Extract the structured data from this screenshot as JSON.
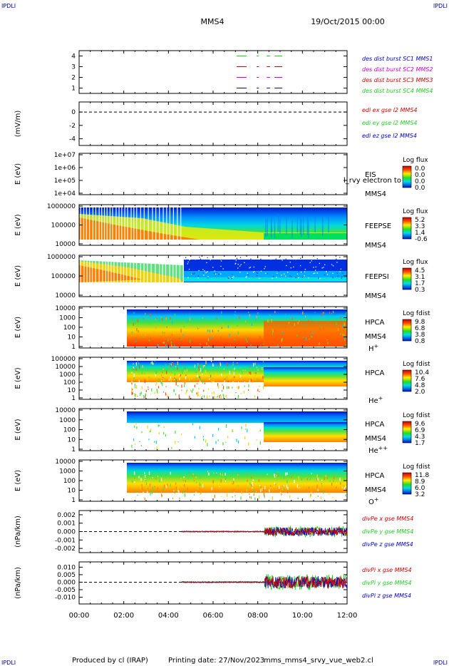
{
  "header": {
    "corner_left": "IPDLI",
    "corner_right": "IPDLI",
    "spacecraft": "MMS4",
    "date_time": "19/Oct/2015 00:00"
  },
  "footer": {
    "corner_left": "IPDLI",
    "corner_right": "IPDLI",
    "produced_by": "Produced by cl (IRAP)",
    "printing_date": "Printing date: 27/Nov/2023",
    "script": "mms_mms4_srvy_vue_web2.cl"
  },
  "time_axis": {
    "ticks": [
      "00:00",
      "02:00",
      "04:00",
      "06:00",
      "08:00",
      "10:00",
      "12:00"
    ],
    "range_hours": [
      0,
      12
    ]
  },
  "colors": {
    "red": "#cc0000",
    "green": "#22cc22",
    "blue": "#0000cc",
    "magenta": "#cc00cc"
  },
  "chart_data": [
    {
      "type": "line",
      "panel": "burst",
      "ylim": [
        0.5,
        4.5
      ],
      "yticks": [
        "4",
        "3",
        "2",
        "1"
      ],
      "ytick_values": [
        4,
        3,
        2,
        1
      ],
      "series": [
        {
          "name": "des dist burst SC1 MMS1",
          "color": "#0000cc",
          "level": 1
        },
        {
          "name": "des dist burst SC2 MMS2",
          "color": "#cc00cc",
          "level": 2
        },
        {
          "name": "des dist burst SC3 MMS3",
          "color": "#cc0000",
          "level": 3
        },
        {
          "name": "des dist burst SC4 MMS4",
          "color": "#22cc22",
          "level": 4
        }
      ],
      "segments_hours": [
        [
          7.05,
          7.5
        ],
        [
          7.95,
          8.05
        ],
        [
          8.4,
          8.55
        ],
        [
          8.75,
          9.1
        ]
      ]
    },
    {
      "type": "line",
      "panel": "edi",
      "ylabel": "(mV/m)",
      "ylim": [
        -5,
        1.5
      ],
      "yticks": [
        "0",
        "-2",
        "-4"
      ],
      "ytick_values": [
        0,
        -2,
        -4
      ],
      "series": [
        {
          "name": "edi ex gse l2 MMS4",
          "color": "#cc0000"
        },
        {
          "name": "edi ey gse l2 MMS4",
          "color": "#22cc22"
        },
        {
          "name": "edi ez gse l2 MMS4",
          "color": "#0000cc"
        }
      ],
      "reference_line": 0
    },
    {
      "type": "heatmap",
      "panel": "eis",
      "ylabel": "E (eV)",
      "yticks": [
        "1e+07",
        "1e+06",
        "1e+05",
        "1e+04"
      ],
      "instrument": "EIS",
      "overlay_text": "l_rvy electron to",
      "spacecraft": "MMS4",
      "colorbar_title": "Log flux",
      "colorbar_ticks": [
        "0.0",
        "0.0",
        "0.0",
        "0.0"
      ]
    },
    {
      "type": "heatmap",
      "panel": "feepse",
      "ylabel": "E (eV)",
      "yticks": [
        "1000000",
        "100000",
        "10000"
      ],
      "instrument": "FEEPSE",
      "spacecraft": "MMS4",
      "colorbar_title": "Log flux",
      "colorbar_ticks": [
        "5.2",
        "3.3",
        "1.4",
        "-0.6"
      ]
    },
    {
      "type": "heatmap",
      "panel": "feepsi",
      "ylabel": "E (eV)",
      "yticks": [
        "1000000",
        "100000",
        "10000"
      ],
      "instrument": "FEEPSI",
      "spacecraft": "MMS4",
      "colorbar_title": "Log flux",
      "colorbar_ticks": [
        "4.5",
        "3.1",
        "1.7",
        "0.3"
      ]
    },
    {
      "type": "heatmap",
      "panel": "hpca_h",
      "ylabel": "E (eV)",
      "yticks": [
        "10000",
        "1000",
        "100",
        "10",
        "1"
      ],
      "instrument": "HPCA",
      "spacecraft": "MMS4",
      "species": "H",
      "species_charge": "+",
      "colorbar_title": "Log fdist",
      "colorbar_ticks": [
        "9.8",
        "6.8",
        "3.8",
        "0.8"
      ],
      "data_start_hours": 2.25
    },
    {
      "type": "heatmap",
      "panel": "hpca_he1",
      "ylabel": "E (eV)",
      "yticks": [
        "100000",
        "10000",
        "1000",
        "100",
        "10",
        "1"
      ],
      "instrument": "HPCA",
      "species": "He",
      "species_charge": "+",
      "colorbar_title": "Log fdist",
      "colorbar_ticks": [
        "10.4",
        "7.6",
        "4.8",
        "2.0"
      ],
      "data_start_hours": 2.25
    },
    {
      "type": "heatmap",
      "panel": "hpca_he2",
      "ylabel": "E (eV)",
      "yticks": [
        "10000",
        "1000",
        "100",
        "10",
        "1"
      ],
      "instrument": "HPCA",
      "spacecraft": "MMS4",
      "species": "He",
      "species_charge": "++",
      "colorbar_title": "Log fdist",
      "colorbar_ticks": [
        "9.6",
        "6.9",
        "4.3",
        "1.7"
      ],
      "data_start_hours": 2.25
    },
    {
      "type": "heatmap",
      "panel": "hpca_o",
      "ylabel": "E (eV)",
      "yticks": [
        "10000",
        "1000",
        "100",
        "10",
        "1"
      ],
      "instrument": "HPCA",
      "spacecraft": "MMS4",
      "species": "O",
      "species_charge": "+",
      "colorbar_title": "Log fdist",
      "colorbar_ticks": [
        "11.8",
        "8.9",
        "6.0",
        "3.2"
      ],
      "data_start_hours": 2.25
    },
    {
      "type": "line",
      "panel": "divpe",
      "ylabel": "(nPa/km)",
      "ylim": [
        -0.0025,
        0.0025
      ],
      "yticks": [
        "0.002",
        "0.001",
        "0.000",
        "-0.001",
        "-0.002"
      ],
      "ytick_values": [
        0.002,
        0.001,
        0,
        -0.001,
        -0.002
      ],
      "series": [
        {
          "name": "divPe x gse MMS4",
          "color": "#cc0000"
        },
        {
          "name": "divPe y gse MMS4",
          "color": "#22cc22"
        },
        {
          "name": "divPe z gse MMS4",
          "color": "#0000cc"
        }
      ],
      "reference_line": 0,
      "data_start_hours": 4.6
    },
    {
      "type": "line",
      "panel": "divpi",
      "ylabel": "(nPa/km)",
      "ylim": [
        -0.0145,
        0.0135
      ],
      "yticks": [
        "0.010",
        "0.005",
        "0.000",
        "-0.005",
        "-0.010"
      ],
      "ytick_values": [
        0.01,
        0.005,
        0,
        -0.005,
        -0.01
      ],
      "series": [
        {
          "name": "divPi x gse MMS4",
          "color": "#cc0000"
        },
        {
          "name": "divPi y gse MMS4",
          "color": "#22cc22"
        },
        {
          "name": "divPi z gse MMS4",
          "color": "#0000cc"
        }
      ],
      "reference_line": 0,
      "data_start_hours": 4.6
    }
  ]
}
